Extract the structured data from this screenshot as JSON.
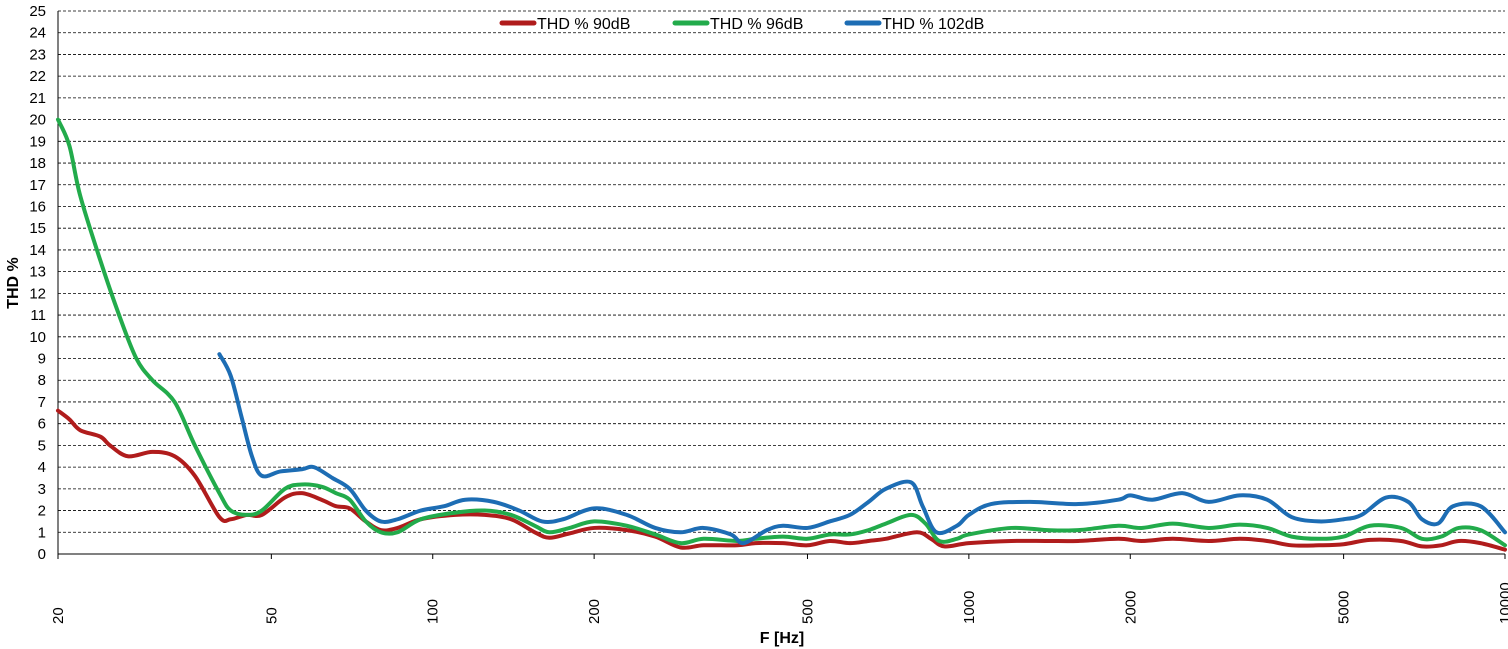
{
  "chart_data": {
    "type": "line",
    "title": "",
    "xlabel": "F [Hz]",
    "ylabel": "THD %",
    "x_scale": "log",
    "xlim": [
      20,
      10000
    ],
    "ylim": [
      0,
      25
    ],
    "grid": true,
    "legend_position": "top-center",
    "x_ticks": [
      20,
      50,
      100,
      200,
      500,
      1000,
      2000,
      5000,
      10000
    ],
    "y_ticks": [
      0,
      1,
      2,
      3,
      4,
      5,
      6,
      7,
      8,
      9,
      10,
      11,
      12,
      13,
      14,
      15,
      16,
      17,
      18,
      19,
      20,
      21,
      22,
      23,
      24,
      25
    ],
    "series": [
      {
        "name": "THD % 90dB",
        "color": "#b01c1c",
        "points": [
          [
            20,
            6.6
          ],
          [
            21,
            6.2
          ],
          [
            22,
            5.7
          ],
          [
            24,
            5.4
          ],
          [
            25,
            5.0
          ],
          [
            27,
            4.5
          ],
          [
            30,
            4.7
          ],
          [
            33,
            4.5
          ],
          [
            36,
            3.6
          ],
          [
            40,
            1.7
          ],
          [
            42,
            1.6
          ],
          [
            45,
            1.8
          ],
          [
            48,
            1.8
          ],
          [
            53,
            2.6
          ],
          [
            57,
            2.8
          ],
          [
            62,
            2.5
          ],
          [
            66,
            2.2
          ],
          [
            70,
            2.1
          ],
          [
            75,
            1.5
          ],
          [
            80,
            1.1
          ],
          [
            86,
            1.2
          ],
          [
            95,
            1.6
          ],
          [
            110,
            1.8
          ],
          [
            125,
            1.8
          ],
          [
            140,
            1.6
          ],
          [
            155,
            1.0
          ],
          [
            165,
            0.75
          ],
          [
            180,
            0.95
          ],
          [
            200,
            1.2
          ],
          [
            230,
            1.1
          ],
          [
            260,
            0.8
          ],
          [
            290,
            0.3
          ],
          [
            320,
            0.4
          ],
          [
            370,
            0.4
          ],
          [
            400,
            0.5
          ],
          [
            450,
            0.5
          ],
          [
            500,
            0.4
          ],
          [
            550,
            0.6
          ],
          [
            600,
            0.5
          ],
          [
            650,
            0.6
          ],
          [
            700,
            0.7
          ],
          [
            800,
            1.0
          ],
          [
            850,
            0.7
          ],
          [
            900,
            0.35
          ],
          [
            1000,
            0.5
          ],
          [
            1200,
            0.6
          ],
          [
            1400,
            0.6
          ],
          [
            1600,
            0.6
          ],
          [
            1900,
            0.7
          ],
          [
            2100,
            0.6
          ],
          [
            2400,
            0.7
          ],
          [
            2800,
            0.6
          ],
          [
            3200,
            0.7
          ],
          [
            3600,
            0.6
          ],
          [
            4000,
            0.4
          ],
          [
            4500,
            0.4
          ],
          [
            5000,
            0.45
          ],
          [
            5600,
            0.65
          ],
          [
            6400,
            0.6
          ],
          [
            7000,
            0.35
          ],
          [
            7600,
            0.4
          ],
          [
            8200,
            0.6
          ],
          [
            9000,
            0.5
          ],
          [
            10000,
            0.2
          ]
        ]
      },
      {
        "name": "THD % 96dB",
        "color": "#22ab4b",
        "points": [
          [
            20,
            20.0
          ],
          [
            21,
            18.8
          ],
          [
            22,
            16.5
          ],
          [
            24,
            13.5
          ],
          [
            26,
            11.0
          ],
          [
            28,
            9.0
          ],
          [
            30,
            8.0
          ],
          [
            33,
            7.0
          ],
          [
            36,
            5.0
          ],
          [
            40,
            2.8
          ],
          [
            42,
            2.0
          ],
          [
            45,
            1.8
          ],
          [
            48,
            2.0
          ],
          [
            53,
            3.0
          ],
          [
            57,
            3.2
          ],
          [
            62,
            3.1
          ],
          [
            66,
            2.8
          ],
          [
            70,
            2.5
          ],
          [
            75,
            1.5
          ],
          [
            80,
            1.0
          ],
          [
            86,
            1.0
          ],
          [
            95,
            1.6
          ],
          [
            110,
            1.9
          ],
          [
            125,
            2.0
          ],
          [
            140,
            1.8
          ],
          [
            155,
            1.3
          ],
          [
            165,
            1.0
          ],
          [
            180,
            1.2
          ],
          [
            200,
            1.5
          ],
          [
            230,
            1.3
          ],
          [
            260,
            0.9
          ],
          [
            290,
            0.5
          ],
          [
            320,
            0.7
          ],
          [
            370,
            0.6
          ],
          [
            400,
            0.7
          ],
          [
            450,
            0.8
          ],
          [
            500,
            0.7
          ],
          [
            550,
            0.9
          ],
          [
            600,
            0.9
          ],
          [
            650,
            1.1
          ],
          [
            700,
            1.4
          ],
          [
            780,
            1.8
          ],
          [
            830,
            1.4
          ],
          [
            880,
            0.6
          ],
          [
            950,
            0.7
          ],
          [
            1000,
            0.9
          ],
          [
            1200,
            1.2
          ],
          [
            1400,
            1.1
          ],
          [
            1600,
            1.1
          ],
          [
            1900,
            1.3
          ],
          [
            2100,
            1.2
          ],
          [
            2400,
            1.4
          ],
          [
            2800,
            1.2
          ],
          [
            3200,
            1.35
          ],
          [
            3600,
            1.2
          ],
          [
            4000,
            0.8
          ],
          [
            4500,
            0.7
          ],
          [
            5000,
            0.8
          ],
          [
            5600,
            1.3
          ],
          [
            6400,
            1.2
          ],
          [
            7000,
            0.7
          ],
          [
            7600,
            0.8
          ],
          [
            8200,
            1.2
          ],
          [
            9000,
            1.1
          ],
          [
            10000,
            0.4
          ]
        ]
      },
      {
        "name": "THD % 102dB",
        "color": "#1d6db4",
        "points": [
          [
            40,
            9.2
          ],
          [
            42,
            8.2
          ],
          [
            44,
            6.3
          ],
          [
            46,
            4.5
          ],
          [
            48,
            3.6
          ],
          [
            52,
            3.8
          ],
          [
            57,
            3.9
          ],
          [
            60,
            4.0
          ],
          [
            65,
            3.5
          ],
          [
            70,
            3.0
          ],
          [
            75,
            2.0
          ],
          [
            80,
            1.5
          ],
          [
            86,
            1.6
          ],
          [
            95,
            2.0
          ],
          [
            105,
            2.2
          ],
          [
            115,
            2.5
          ],
          [
            130,
            2.4
          ],
          [
            145,
            2.0
          ],
          [
            160,
            1.5
          ],
          [
            175,
            1.6
          ],
          [
            200,
            2.1
          ],
          [
            230,
            1.8
          ],
          [
            260,
            1.2
          ],
          [
            290,
            1.0
          ],
          [
            320,
            1.2
          ],
          [
            360,
            0.9
          ],
          [
            380,
            0.5
          ],
          [
            420,
            1.1
          ],
          [
            450,
            1.3
          ],
          [
            500,
            1.2
          ],
          [
            550,
            1.5
          ],
          [
            600,
            1.8
          ],
          [
            650,
            2.4
          ],
          [
            700,
            3.0
          ],
          [
            780,
            3.3
          ],
          [
            820,
            2.2
          ],
          [
            870,
            1.0
          ],
          [
            950,
            1.3
          ],
          [
            1000,
            1.8
          ],
          [
            1100,
            2.3
          ],
          [
            1300,
            2.4
          ],
          [
            1600,
            2.3
          ],
          [
            1900,
            2.5
          ],
          [
            2000,
            2.7
          ],
          [
            2200,
            2.5
          ],
          [
            2500,
            2.8
          ],
          [
            2800,
            2.4
          ],
          [
            3200,
            2.7
          ],
          [
            3600,
            2.5
          ],
          [
            4000,
            1.7
          ],
          [
            4500,
            1.5
          ],
          [
            5000,
            1.6
          ],
          [
            5400,
            1.8
          ],
          [
            6000,
            2.6
          ],
          [
            6600,
            2.4
          ],
          [
            7000,
            1.6
          ],
          [
            7500,
            1.4
          ],
          [
            8000,
            2.2
          ],
          [
            9000,
            2.2
          ],
          [
            10000,
            1.0
          ]
        ]
      }
    ]
  }
}
